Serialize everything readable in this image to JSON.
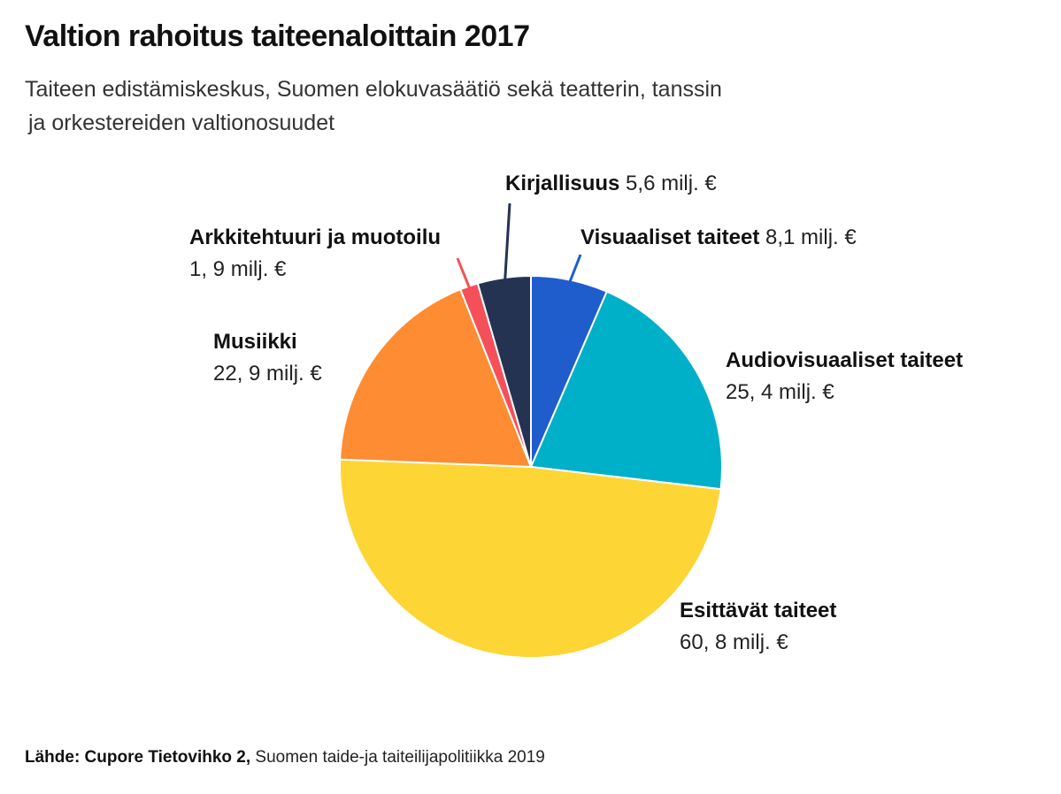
{
  "title": "Valtion rahoitus taiteenaloittain 2017",
  "subtitle_line1": "Taiteen edistämiskeskus, Suomen elokuvasäätiö sekä teatterin, tanssin",
  "subtitle_line2": "ja orkestereiden valtionosuudet",
  "source_bold": "Lähde: Cupore Tietovihko 2,",
  "source_text": " Suomen taide-ja taiteilijapolitiikka 2019",
  "chart_data": {
    "type": "pie",
    "start": "12 o'clock, clockwise",
    "slices": [
      {
        "name": "Visuaaliset taiteet",
        "value": 8.1,
        "value_label": "8,1 milj. €",
        "color": "#1f5ccc"
      },
      {
        "name": "Audiovisuaaliset taiteet",
        "value": 25.4,
        "value_label": "25, 4 milj. €",
        "color": "#00b0c8"
      },
      {
        "name": "Esittävät taiteet",
        "value": 60.8,
        "value_label": "60, 8 milj. €",
        "color": "#fdd535"
      },
      {
        "name": "Musiikki",
        "value": 22.9,
        "value_label": "22, 9 milj. €",
        "color": "#fd8c33"
      },
      {
        "name": "Arkkitehtuuri ja muotoilu",
        "value": 1.9,
        "value_label": "1, 9 milj. €",
        "color": "#f5505a"
      },
      {
        "name": "Kirjallisuus",
        "value": 5.6,
        "value_label": "5,6 milj. €",
        "color": "#243352"
      }
    ]
  }
}
